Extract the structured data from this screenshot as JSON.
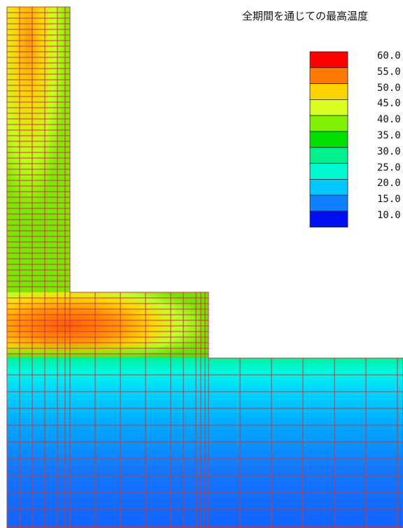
{
  "title": "全期間を通じての最高温度",
  "legend": {
    "labels": [
      "60.0",
      "55.0",
      "50.0",
      "45.0",
      "40.0",
      "35.0",
      "30.0",
      "25.0",
      "20.0",
      "15.0",
      "10.0"
    ],
    "colors": [
      "#ff0000",
      "#ff7a00",
      "#ffd200",
      "#d8ff20",
      "#80f000",
      "#00e000",
      "#00f090",
      "#00f8d0",
      "#00c8ff",
      "#1080ff",
      "#0010f0"
    ]
  },
  "colors": {
    "mesh_line": "#c83a3a",
    "background": "#ffffff"
  }
}
